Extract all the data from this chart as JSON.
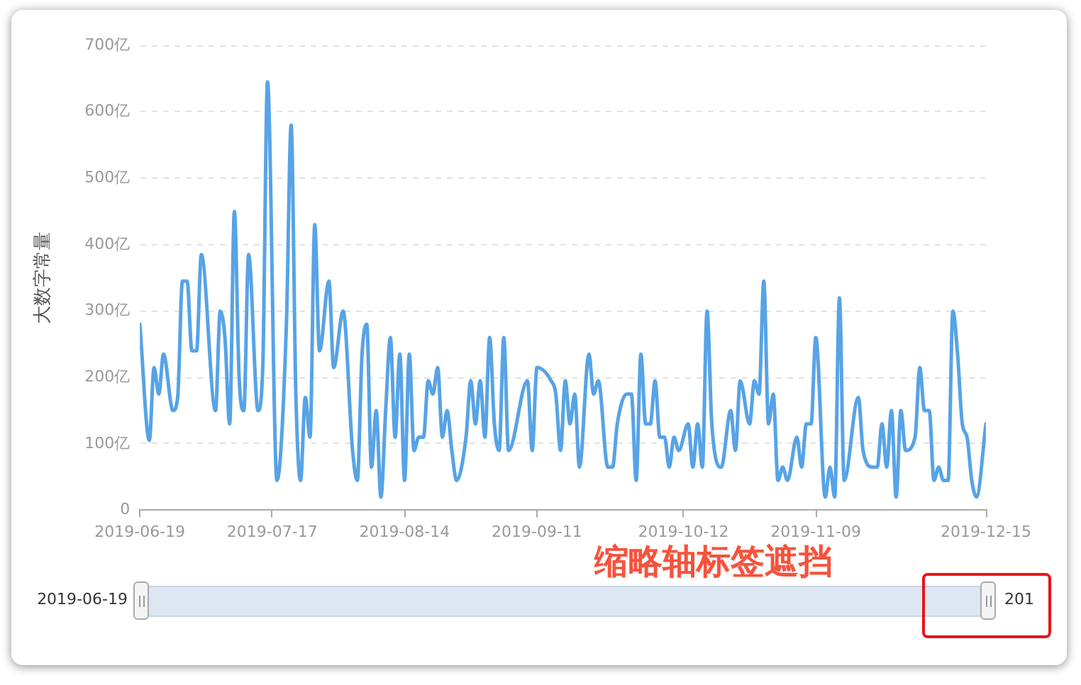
{
  "chart_data": {
    "type": "line",
    "ylabel": "大数字常量",
    "annotations": [
      "缩略轴标签遮挡",
      "2019-06-19",
      "201"
    ],
    "x": [
      "2019-06-19",
      "2019-06-21",
      "2019-06-22",
      "2019-06-23",
      "2019-06-24",
      "2019-06-26",
      "2019-06-27",
      "2019-06-28",
      "2019-06-29",
      "2019-06-30",
      "2019-07-01",
      "2019-07-02",
      "2019-07-05",
      "2019-07-06",
      "2019-07-07",
      "2019-07-08",
      "2019-07-09",
      "2019-07-10",
      "2019-07-11",
      "2019-07-12",
      "2019-07-14",
      "2019-07-15",
      "2019-07-16",
      "2019-07-18",
      "2019-07-20",
      "2019-07-21",
      "2019-07-22",
      "2019-07-23",
      "2019-07-24",
      "2019-07-25",
      "2019-07-26",
      "2019-07-27",
      "2019-07-29",
      "2019-07-30",
      "2019-08-01",
      "2019-08-03",
      "2019-08-04",
      "2019-08-05",
      "2019-08-06",
      "2019-08-07",
      "2019-08-08",
      "2019-08-09",
      "2019-08-10",
      "2019-08-11",
      "2019-08-12",
      "2019-08-13",
      "2019-08-14",
      "2019-08-15",
      "2019-08-16",
      "2019-08-17",
      "2019-08-18",
      "2019-08-19",
      "2019-08-20",
      "2019-08-21",
      "2019-08-22",
      "2019-08-23",
      "2019-08-24",
      "2019-08-25",
      "2019-08-27",
      "2019-08-28",
      "2019-08-29",
      "2019-08-30",
      "2019-08-31",
      "2019-09-01",
      "2019-09-02",
      "2019-09-03",
      "2019-09-04",
      "2019-09-05",
      "2019-09-09",
      "2019-09-10",
      "2019-09-11",
      "2019-09-14",
      "2019-09-15",
      "2019-09-16",
      "2019-09-17",
      "2019-09-18",
      "2019-09-19",
      "2019-09-20",
      "2019-09-22",
      "2019-09-23",
      "2019-09-24",
      "2019-09-26",
      "2019-09-27",
      "2019-09-28",
      "2019-09-30",
      "2019-10-01",
      "2019-10-02",
      "2019-10-03",
      "2019-10-04",
      "2019-10-05",
      "2019-10-06",
      "2019-10-07",
      "2019-10-08",
      "2019-10-09",
      "2019-10-10",
      "2019-10-11",
      "2019-10-13",
      "2019-10-14",
      "2019-10-15",
      "2019-10-16",
      "2019-10-17",
      "2019-10-18",
      "2019-10-20",
      "2019-10-22",
      "2019-10-23",
      "2019-10-24",
      "2019-10-26",
      "2019-10-27",
      "2019-10-28",
      "2019-10-29",
      "2019-10-30",
      "2019-10-31",
      "2019-11-01",
      "2019-11-02",
      "2019-11-03",
      "2019-11-05",
      "2019-11-06",
      "2019-11-07",
      "2019-11-08",
      "2019-11-09",
      "2019-11-11",
      "2019-11-12",
      "2019-11-13",
      "2019-11-14",
      "2019-11-15",
      "2019-11-18",
      "2019-11-19",
      "2019-11-21",
      "2019-11-22",
      "2019-11-23",
      "2019-11-24",
      "2019-11-25",
      "2019-11-26",
      "2019-11-27",
      "2019-11-28",
      "2019-11-30",
      "2019-12-01",
      "2019-12-02",
      "2019-12-03",
      "2019-12-04",
      "2019-12-05",
      "2019-12-06",
      "2019-12-07",
      "2019-12-08",
      "2019-12-09",
      "2019-12-10",
      "2019-12-11",
      "2019-12-12",
      "2019-12-13",
      "2019-12-15"
    ],
    "series": [
      {
        "color": "#57a3e6",
        "values": [
          280,
          105,
          215,
          175,
          235,
          150,
          170,
          345,
          345,
          240,
          240,
          385,
          150,
          300,
          260,
          130,
          450,
          200,
          150,
          385,
          150,
          215,
          645,
          45,
          280,
          580,
          175,
          45,
          170,
          110,
          430,
          240,
          345,
          215,
          300,
          90,
          45,
          235,
          280,
          65,
          150,
          20,
          150,
          260,
          110,
          235,
          45,
          235,
          90,
          110,
          110,
          195,
          175,
          215,
          110,
          150,
          90,
          45,
          110,
          195,
          130,
          195,
          110,
          260,
          130,
          90,
          260,
          90,
          195,
          90,
          215,
          195,
          175,
          90,
          195,
          130,
          175,
          65,
          235,
          175,
          195,
          65,
          65,
          130,
          175,
          175,
          45,
          235,
          130,
          130,
          195,
          110,
          110,
          65,
          110,
          90,
          130,
          65,
          130,
          65,
          300,
          130,
          65,
          150,
          90,
          195,
          130,
          195,
          175,
          345,
          130,
          175,
          45,
          65,
          45,
          110,
          65,
          130,
          130,
          260,
          20,
          65,
          20,
          320,
          45,
          170,
          90,
          65,
          65,
          130,
          65,
          150,
          20,
          150,
          90,
          110,
          215,
          150,
          150,
          45,
          65,
          45,
          45,
          300,
          235,
          130,
          110,
          45,
          20,
          130
        ]
      }
    ],
    "xlim": [
      "2019-06-19",
      "2019-12-15"
    ],
    "xticks": [
      "2019-06-19",
      "2019-07-17",
      "2019-08-14",
      "2019-09-11",
      "2019-10-12",
      "2019-11-09",
      "2019-12-15"
    ],
    "ylim": [
      0,
      700
    ],
    "yticks": [
      0,
      {
        "value": 100,
        "label": "100亿"
      },
      {
        "value": 200,
        "label": "200亿"
      },
      {
        "value": 300,
        "label": "300亿"
      },
      {
        "value": 400,
        "label": "400亿"
      },
      {
        "value": 500,
        "label": "500亿"
      },
      {
        "value": 600,
        "label": "600亿"
      },
      {
        "value": 700,
        "label": "700亿"
      }
    ],
    "grid": "y",
    "marker": "none"
  }
}
